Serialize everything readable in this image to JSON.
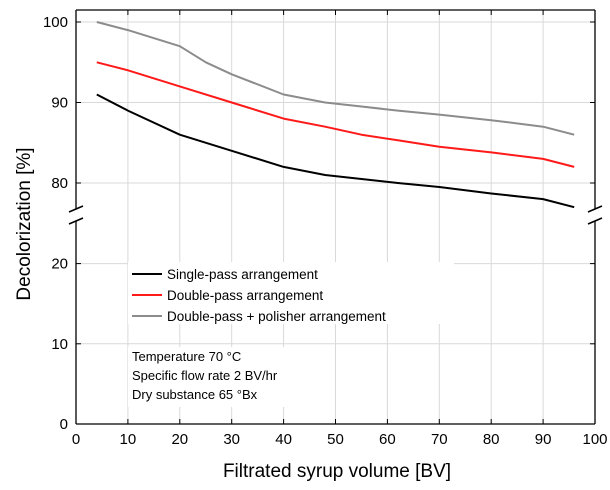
{
  "chart_data": {
    "type": "line",
    "xlabel": "Filtrated syrup volume [BV]",
    "ylabel": "Decolorization [%]",
    "xlim": [
      0,
      100
    ],
    "x_ticks": [
      0,
      10,
      20,
      30,
      40,
      50,
      60,
      70,
      80,
      90,
      100
    ],
    "y_ticks": [
      0,
      10,
      20,
      80,
      90,
      100
    ],
    "y_axis_break": [
      25,
      75
    ],
    "grid": true,
    "legend_position": "center-left",
    "series": [
      {
        "name": "Single-pass arrangement",
        "color": "#000000",
        "x": [
          4,
          10,
          20,
          30,
          40,
          48,
          55,
          62,
          70,
          80,
          90,
          96
        ],
        "y": [
          91,
          89,
          86,
          84,
          82,
          81,
          80.5,
          80,
          79.5,
          78.7,
          78,
          77
        ]
      },
      {
        "name": "Double-pass arrangement",
        "color": "#ff1a1a",
        "x": [
          4,
          10,
          20,
          30,
          40,
          48,
          55,
          62,
          70,
          80,
          90,
          96
        ],
        "y": [
          95,
          94,
          92,
          90,
          88,
          87,
          86,
          85.3,
          84.5,
          83.8,
          83,
          82
        ]
      },
      {
        "name": "Double-pass + polisher arrangement",
        "color": "#8c8c8c",
        "x": [
          4,
          10,
          20,
          25,
          30,
          40,
          48,
          55,
          62,
          70,
          80,
          90,
          96
        ],
        "y": [
          100,
          99,
          97,
          95,
          93.5,
          91,
          90,
          89.5,
          89,
          88.5,
          87.8,
          87,
          86
        ]
      }
    ],
    "annotation": [
      "Temperature 70 °C",
      "Specific flow rate 2 BV/hr",
      "Dry substance 65 °Bx"
    ]
  }
}
